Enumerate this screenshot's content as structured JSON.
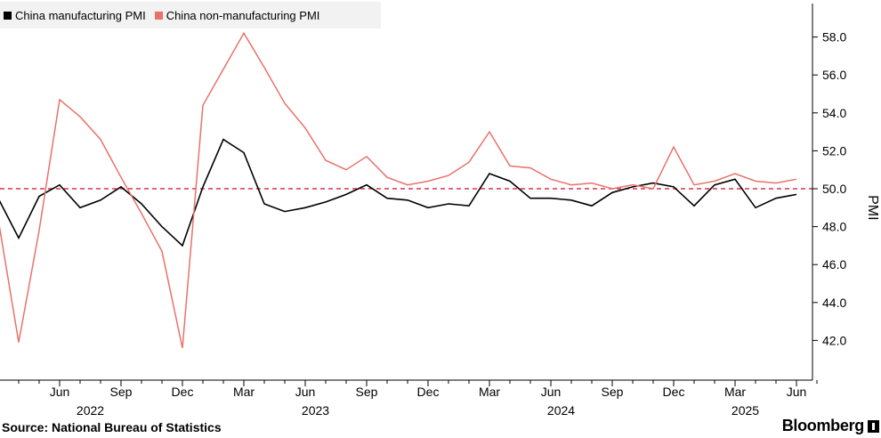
{
  "chart_data": {
    "type": "line",
    "title": "",
    "ylabel": "PMI",
    "xlabel": "",
    "ylim": [
      40,
      60
    ],
    "yticks": [
      "42.0",
      "44.0",
      "46.0",
      "48.0",
      "50.0",
      "52.0",
      "54.0",
      "56.0",
      "58.0"
    ],
    "reference_line": 50,
    "legend": [
      "China manufacturing PMI",
      "China non-manufacturing PMI"
    ],
    "x_tick_labels": [
      "Jun",
      "Sep",
      "Dec",
      "Mar",
      "Jun",
      "Sep",
      "Dec",
      "Mar",
      "Jun",
      "Sep",
      "Dec",
      "Mar",
      "Jun"
    ],
    "x_tick_months": [
      5,
      8,
      11,
      14,
      17,
      20,
      23,
      26,
      29,
      32,
      35,
      38,
      41
    ],
    "year_labels": [
      {
        "label": "2022",
        "month": 6.5
      },
      {
        "label": "2023",
        "month": 17.5
      },
      {
        "label": "2024",
        "month": 29.5
      },
      {
        "label": "2025",
        "month": 38.5
      }
    ],
    "x_start_month": 2,
    "x_end_month": 42,
    "series": [
      {
        "name": "China manufacturing PMI",
        "color": "#000000",
        "start_month": 2,
        "values": [
          49.5,
          47.4,
          49.6,
          50.2,
          49.0,
          49.4,
          50.1,
          49.2,
          48.0,
          47.0,
          50.1,
          52.6,
          51.9,
          49.2,
          48.8,
          49.0,
          49.3,
          49.7,
          50.2,
          49.5,
          49.4,
          49.0,
          49.2,
          49.1,
          50.8,
          50.4,
          49.5,
          49.5,
          49.4,
          49.1,
          49.8,
          50.1,
          50.3,
          50.1,
          49.1,
          50.2,
          50.5,
          49.0,
          49.5,
          49.7
        ]
      },
      {
        "name": "China non-manufacturing PMI",
        "color": "#e8726a",
        "start_month": 2,
        "values": [
          48.4,
          41.9,
          47.8,
          54.7,
          53.8,
          52.6,
          50.6,
          48.7,
          46.7,
          41.6,
          54.4,
          56.3,
          58.2,
          56.4,
          54.5,
          53.2,
          51.5,
          51.0,
          51.7,
          50.6,
          50.2,
          50.4,
          50.7,
          51.4,
          53.0,
          51.2,
          51.1,
          50.5,
          50.2,
          50.3,
          50.0,
          50.2,
          50.0,
          52.2,
          50.2,
          50.4,
          50.8,
          50.4,
          50.3,
          50.5
        ]
      }
    ]
  },
  "legend_labels": {
    "manufacturing": "China manufacturing PMI",
    "non_manufacturing": "China non-manufacturing PMI"
  },
  "colors": {
    "manufacturing": "#000000",
    "non_manufacturing": "#e8726a",
    "reference": "#d9344f",
    "axis": "#000000"
  },
  "source": "Source: National Bureau of Statistics",
  "brand": "Bloomberg"
}
